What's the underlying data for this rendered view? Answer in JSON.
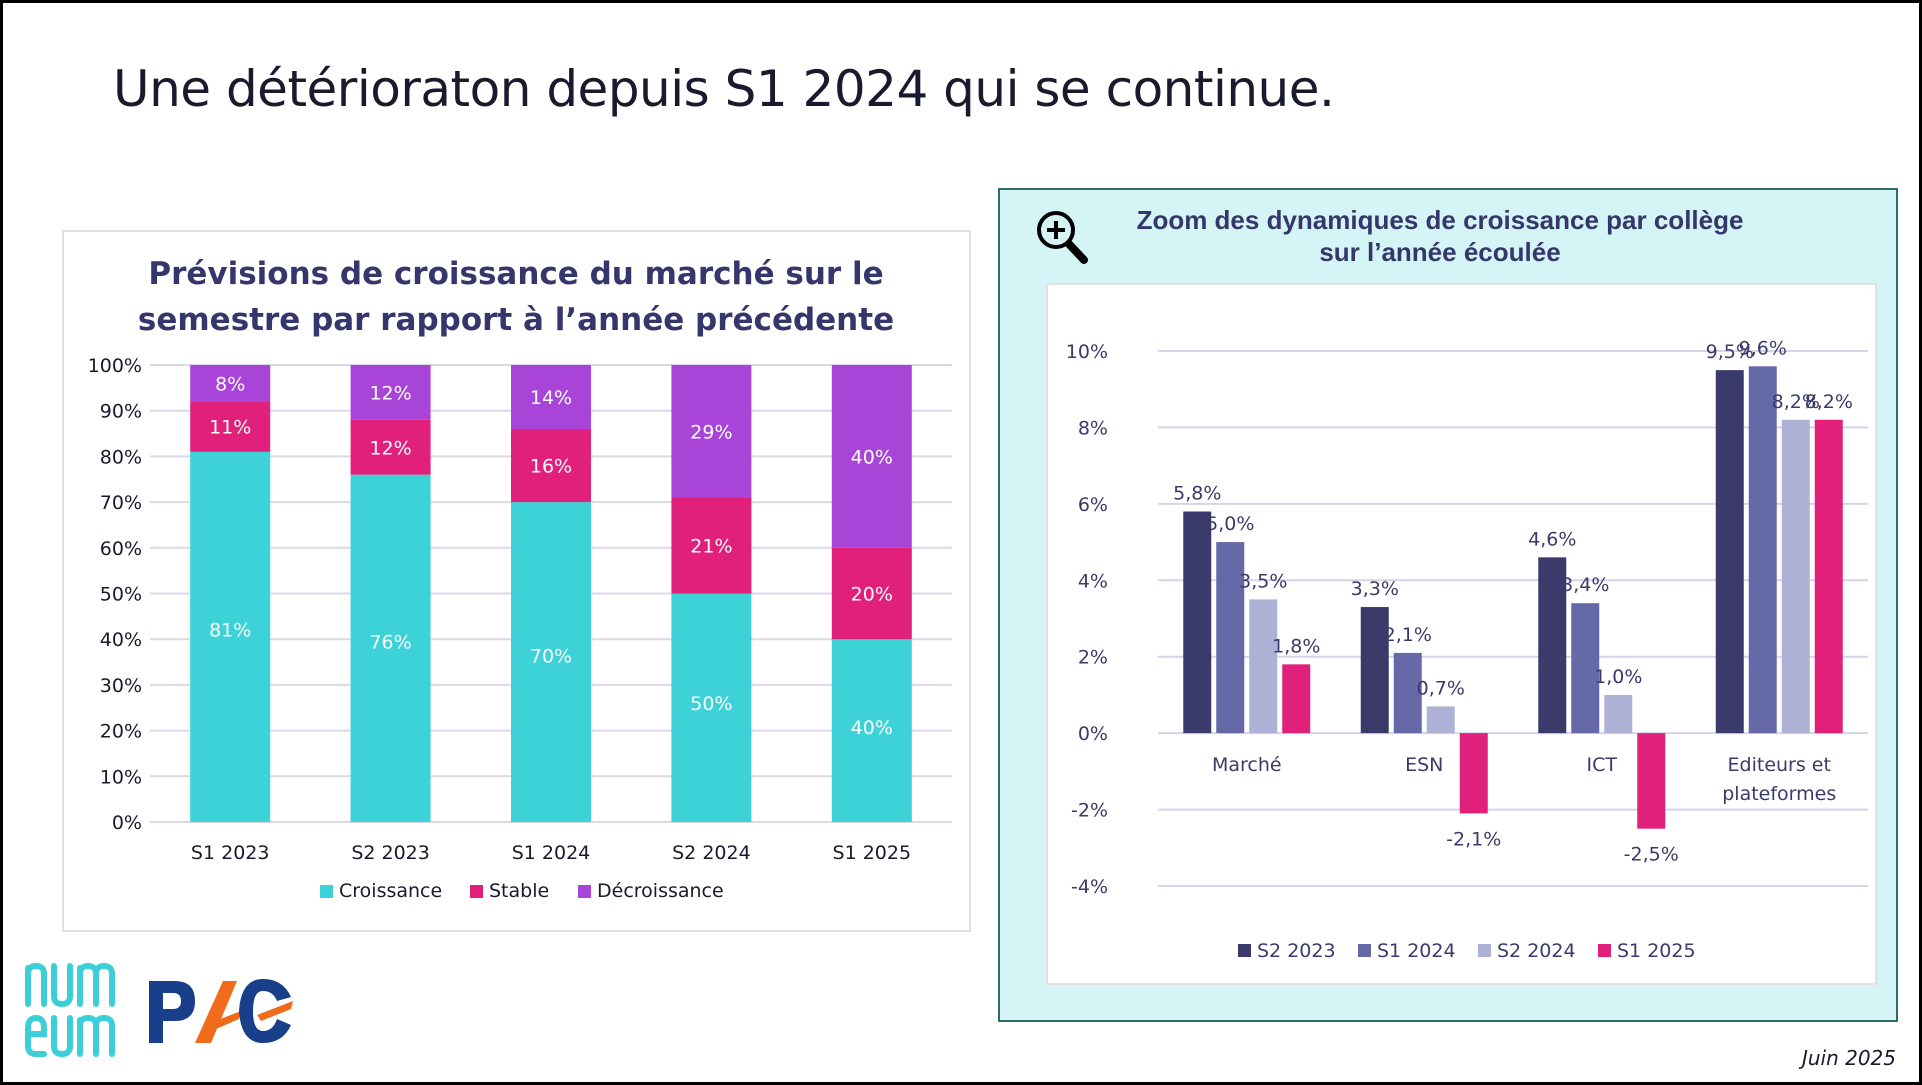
{
  "slide": {
    "title": "Une détérioraton depuis S1 2024 qui se continue.",
    "date": "Juin 2025",
    "logos": [
      "numeum-logo",
      "pac-logo"
    ]
  },
  "colors": {
    "croissance": "#3dd1d8",
    "stable": "#e0207a",
    "decroissance": "#a944d9",
    "s2_2023": "#3a3b6b",
    "s1_2024": "#6669a8",
    "s2_2024": "#aeb1d6",
    "s1_2025": "#e0207a",
    "title_text": "#35366b",
    "panel_bg": "#d4f4f5",
    "panel_border": "#2e6b6b"
  },
  "right_panel": {
    "title_line1": "Zoom des dynamiques de croissance par collège",
    "title_line2": "sur l’année écoulée",
    "icon": "zoom-in-magnifier-icon"
  },
  "chart_data": [
    {
      "type": "bar",
      "stacked": true,
      "title": "Prévisions de croissance du marché sur le semestre par rapport à l’année précédente",
      "title_line1": "Prévisions de croissance du marché sur le",
      "title_line2": "semestre par rapport à l’année précédente",
      "categories": [
        "S1 2023",
        "S2 2023",
        "S1 2024",
        "S2 2024",
        "S1 2025"
      ],
      "series": [
        {
          "name": "Croissance",
          "values": [
            81,
            76,
            70,
            50,
            40
          ],
          "labels": [
            "81%",
            "76%",
            "70%",
            "50%",
            "40%"
          ]
        },
        {
          "name": "Stable",
          "values": [
            11,
            12,
            16,
            21,
            20
          ],
          "labels": [
            "11%",
            "12%",
            "16%",
            "21%",
            "20%"
          ]
        },
        {
          "name": "Décroissance",
          "values": [
            8,
            12,
            14,
            29,
            40
          ],
          "labels": [
            "8%",
            "12%",
            "14%",
            "29%",
            "40%"
          ]
        }
      ],
      "ylim": [
        0,
        100
      ],
      "yticks": [
        "0%",
        "10%",
        "20%",
        "30%",
        "40%",
        "50%",
        "60%",
        "70%",
        "80%",
        "90%",
        "100%"
      ],
      "grid": true,
      "legend": "bottom",
      "xlabel": "",
      "ylabel": ""
    },
    {
      "type": "bar",
      "stacked": false,
      "title": "Zoom des dynamiques de croissance par collège sur l’année écoulée",
      "categories": [
        "Marché",
        "ESN",
        "ICT",
        "Editeurs et plateformes"
      ],
      "category_lines": [
        [
          "Marché"
        ],
        [
          "ESN"
        ],
        [
          "ICT"
        ],
        [
          "Editeurs et",
          "plateformes"
        ]
      ],
      "series": [
        {
          "name": "S2 2023",
          "values": [
            5.8,
            3.3,
            4.6,
            9.5
          ],
          "labels": [
            "5,8%",
            "3,3%",
            "4,6%",
            "9,5%"
          ]
        },
        {
          "name": "S1 2024",
          "values": [
            5.0,
            2.1,
            3.4,
            9.6
          ],
          "labels": [
            "5,0%",
            "2,1%",
            "3,4%",
            "9,6%"
          ]
        },
        {
          "name": "S2 2024",
          "values": [
            3.5,
            0.7,
            1.0,
            8.2
          ],
          "labels": [
            "3,5%",
            "0,7%",
            "1,0%",
            "8,2%"
          ]
        },
        {
          "name": "S1 2025",
          "values": [
            1.8,
            -2.1,
            -2.5,
            8.2
          ],
          "labels": [
            "1,8%",
            "-2,1%",
            "-2,5%",
            "8,2%"
          ]
        }
      ],
      "ylim": [
        -4,
        10
      ],
      "yticks": [
        "-4%",
        "-2%",
        "0%",
        "2%",
        "4%",
        "6%",
        "8%",
        "10%"
      ],
      "grid": true,
      "legend": "bottom",
      "xlabel": "",
      "ylabel": ""
    }
  ]
}
